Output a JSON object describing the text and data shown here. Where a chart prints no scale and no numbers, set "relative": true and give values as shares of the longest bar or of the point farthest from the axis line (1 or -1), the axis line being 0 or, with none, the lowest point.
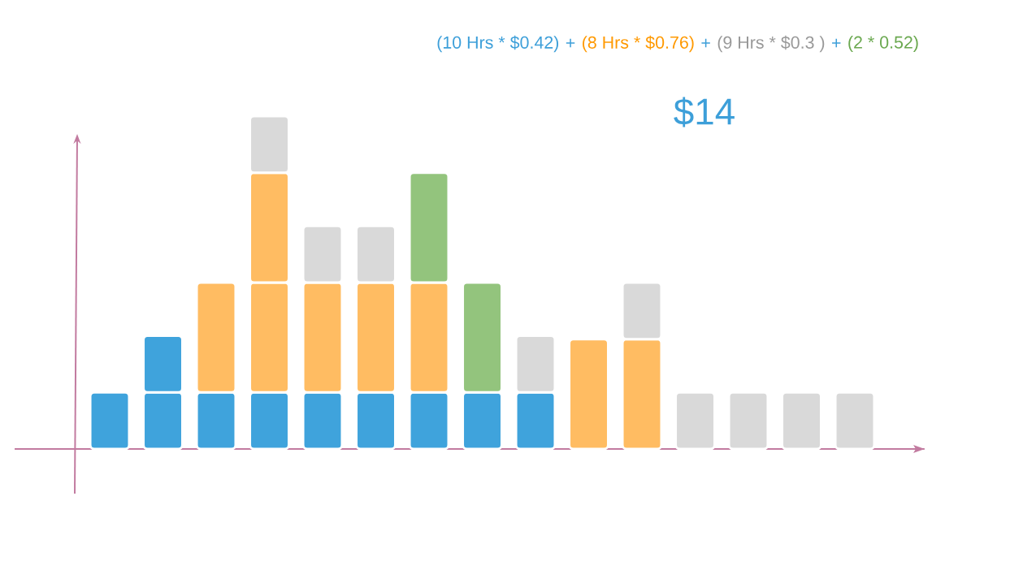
{
  "chart_data": {
    "type": "bar",
    "relative": true,
    "stacked": true,
    "categories": [
      null,
      null,
      null,
      null,
      null,
      null,
      null,
      null,
      null,
      null,
      null,
      null,
      null,
      null,
      null
    ],
    "series": [
      {
        "color": "#3fa3dc",
        "values": [
          0.17,
          0.17,
          0.17,
          0.17,
          0.17,
          0.17,
          0.17,
          0.17,
          0.17,
          null,
          null,
          null,
          null,
          null,
          null
        ]
      },
      {
        "color": "#3fa3dc",
        "values": [
          null,
          0.17,
          null,
          null,
          null,
          null,
          null,
          null,
          null,
          null,
          null,
          null,
          null,
          null,
          null
        ]
      },
      {
        "color": "#ffbc62",
        "values": [
          null,
          null,
          0.33,
          0.33,
          0.33,
          0.33,
          0.33,
          null,
          null,
          0.33,
          0.33,
          null,
          null,
          null,
          null
        ]
      },
      {
        "color": "#ffbc62",
        "values": [
          null,
          null,
          null,
          0.33,
          null,
          null,
          null,
          null,
          null,
          null,
          null,
          null,
          null,
          null,
          null
        ]
      },
      {
        "color": "#93c47d",
        "values": [
          null,
          null,
          null,
          null,
          null,
          null,
          0.33,
          0.33,
          null,
          null,
          null,
          null,
          null,
          null,
          null
        ]
      },
      {
        "color": "#d9d9d9",
        "values": [
          null,
          null,
          null,
          0.17,
          0.17,
          0.17,
          null,
          null,
          0.17,
          null,
          0.17,
          0.17,
          0.17,
          0.17,
          0.17
        ]
      }
    ],
    "annotations": [
      "(10 Hrs * $0.42)",
      "+",
      "(8 Hrs * $0.76)",
      "+",
      "(9 Hrs * $0.3 )",
      "+",
      "(2 * 0.52)",
      "$14"
    ]
  }
}
